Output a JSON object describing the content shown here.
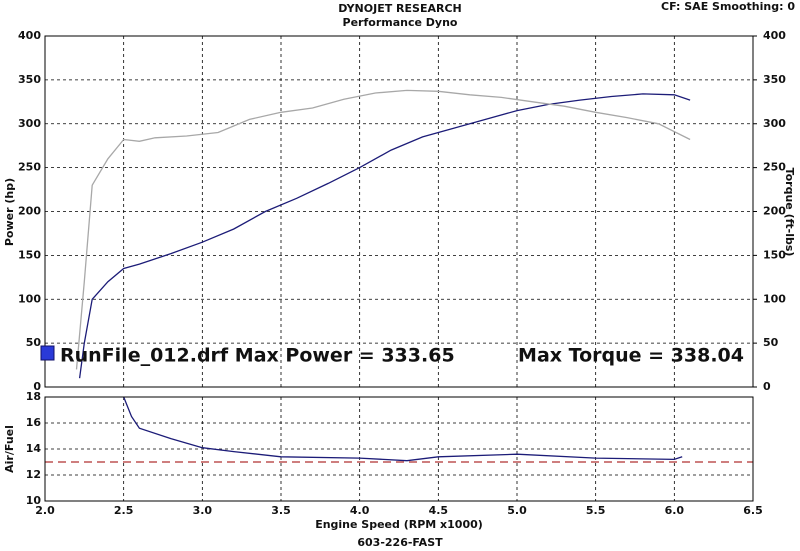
{
  "header": {
    "title": "DYNOJET RESEARCH",
    "subtitle": "Performance Dyno",
    "settings": "CF: SAE  Smoothing: 0",
    "footer": "603-226-FAST"
  },
  "chart_data": [
    {
      "type": "line",
      "ylabel": "Power (hp)",
      "y2label": "Torque (ft-lbs)",
      "ylim": [
        0,
        400
      ],
      "yticks": [
        0,
        50,
        100,
        150,
        200,
        250,
        300,
        350,
        400
      ],
      "y2lim": [
        0,
        400
      ],
      "y2ticks": [
        0,
        50,
        100,
        150,
        200,
        250,
        300,
        350,
        400
      ],
      "grid": true,
      "annotations": [
        "RunFile_012.drf Max Power = 333.65",
        "Max Torque = 338.04"
      ],
      "series": [
        {
          "color": "#1c1c78",
          "axis": "y",
          "x": [
            2.22,
            2.25,
            2.3,
            2.4,
            2.5,
            2.6,
            2.8,
            3.0,
            3.2,
            3.4,
            3.6,
            3.8,
            4.0,
            4.2,
            4.4,
            4.6,
            4.8,
            5.0,
            5.2,
            5.4,
            5.6,
            5.8,
            6.0,
            6.1
          ],
          "values": [
            10,
            50,
            100,
            120,
            135,
            140,
            152,
            165,
            180,
            200,
            215,
            232,
            250,
            270,
            285,
            295,
            305,
            315,
            322,
            327,
            331,
            334,
            333,
            327
          ]
        },
        {
          "color": "#a8a8a8",
          "axis": "y2",
          "x": [
            2.2,
            2.25,
            2.3,
            2.4,
            2.5,
            2.6,
            2.7,
            2.9,
            3.1,
            3.3,
            3.5,
            3.7,
            3.9,
            4.1,
            4.3,
            4.5,
            4.7,
            4.9,
            5.1,
            5.3,
            5.5,
            5.7,
            5.9,
            6.1
          ],
          "values": [
            20,
            120,
            230,
            260,
            282,
            280,
            284,
            286,
            290,
            305,
            313,
            318,
            328,
            335,
            338,
            337,
            333,
            330,
            325,
            320,
            313,
            307,
            300,
            282
          ]
        }
      ]
    },
    {
      "type": "line",
      "ylabel": "Air/Fuel",
      "xlabel": "Engine Speed (RPM x1000)",
      "ylim": [
        10,
        18
      ],
      "yticks": [
        10,
        12,
        14,
        16,
        18
      ],
      "xlim": [
        2,
        6.5
      ],
      "xticks": [
        {
          "value": 2,
          "label": "2.0"
        },
        2.5,
        {
          "value": 3,
          "label": "3.0"
        },
        3.5,
        {
          "value": 4,
          "label": "4.0"
        },
        4.5,
        {
          "value": 5,
          "label": "5.0"
        },
        5.5,
        {
          "value": 6,
          "label": "6.0"
        },
        6.5
      ],
      "grid": true,
      "reference_line": 13,
      "reference_color": "#b03030",
      "series": [
        {
          "color": "#1c1c78",
          "axis": "y",
          "x": [
            2.5,
            2.55,
            2.6,
            2.8,
            3.0,
            3.2,
            3.5,
            4.0,
            4.3,
            4.5,
            5.0,
            5.5,
            6.0,
            6.05
          ],
          "values": [
            18,
            16.5,
            15.6,
            14.8,
            14.1,
            13.8,
            13.4,
            13.3,
            13.1,
            13.4,
            13.6,
            13.3,
            13.2,
            13.4
          ]
        }
      ]
    }
  ]
}
